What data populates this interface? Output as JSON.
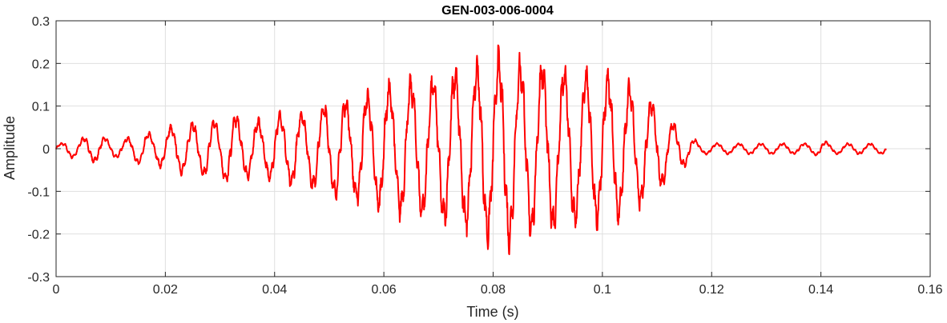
{
  "chart_data": {
    "type": "line",
    "title": "GEN-003-006-0004",
    "xlabel": "Time (s)",
    "ylabel": "Amplitude",
    "xlim": [
      0,
      0.16
    ],
    "ylim": [
      -0.3,
      0.3
    ],
    "x_ticks": [
      0,
      0.02,
      0.04,
      0.06,
      0.08,
      0.1,
      0.12,
      0.14,
      0.16
    ],
    "x_tick_labels": [
      "0",
      "0.02",
      "0.04",
      "0.06",
      "0.08",
      "0.1",
      "0.12",
      "0.14",
      "0.16"
    ],
    "y_ticks": [
      -0.3,
      -0.2,
      -0.1,
      0,
      0.1,
      0.2,
      0.3
    ],
    "y_tick_labels": [
      "-0.3",
      "-0.2",
      "-0.1",
      "0",
      "0.1",
      "0.2",
      "0.3"
    ],
    "grid": true,
    "series": [
      {
        "color": "#ff0000",
        "x": [
          0,
          0.002,
          0.004,
          0.006,
          0.008,
          0.01,
          0.012,
          0.014,
          0.016,
          0.018,
          0.02,
          0.022,
          0.024,
          0.026,
          0.028,
          0.03,
          0.032,
          0.034,
          0.036,
          0.038,
          0.04,
          0.042,
          0.044,
          0.046,
          0.048,
          0.05,
          0.052,
          0.054,
          0.056,
          0.058,
          0.06,
          0.062,
          0.064,
          0.066,
          0.068,
          0.07,
          0.072,
          0.074,
          0.076,
          0.078,
          0.08,
          0.082,
          0.084,
          0.086,
          0.088,
          0.09,
          0.092,
          0.094,
          0.096,
          0.098,
          0.1,
          0.102,
          0.104,
          0.106,
          0.108,
          0.11,
          0.112,
          0.114,
          0.116,
          0.118,
          0.12,
          0.122,
          0.124,
          0.126,
          0.128,
          0.13,
          0.132,
          0.134,
          0.136,
          0.138,
          0.14,
          0.142,
          0.144,
          0.146,
          0.148,
          0.15,
          0.152
        ],
        "y": [
          0.0,
          0.02,
          -0.02,
          0.03,
          -0.03,
          0.02,
          -0.02,
          0.03,
          -0.04,
          0.03,
          -0.05,
          0.05,
          -0.06,
          0.06,
          -0.07,
          0.06,
          -0.09,
          0.06,
          -0.07,
          0.06,
          -0.08,
          0.08,
          -0.09,
          0.08,
          -0.1,
          0.1,
          -0.12,
          0.11,
          -0.13,
          0.12,
          -0.15,
          0.14,
          -0.16,
          0.15,
          -0.16,
          0.16,
          -0.18,
          0.18,
          -0.18,
          0.21,
          -0.2,
          0.22,
          -0.21,
          0.19,
          -0.2,
          0.19,
          -0.18,
          0.18,
          -0.17,
          0.17,
          -0.16,
          0.17,
          -0.15,
          0.14,
          -0.12,
          0.1,
          -0.07,
          0.05,
          -0.03,
          0.01,
          -0.01,
          0.01,
          -0.01,
          0.01,
          -0.01,
          0.005,
          -0.005,
          0.005,
          -0.005,
          0.01,
          -0.02,
          0.01,
          -0.01,
          0.01,
          -0.01,
          0.01,
          -0.01
        ]
      }
    ]
  }
}
